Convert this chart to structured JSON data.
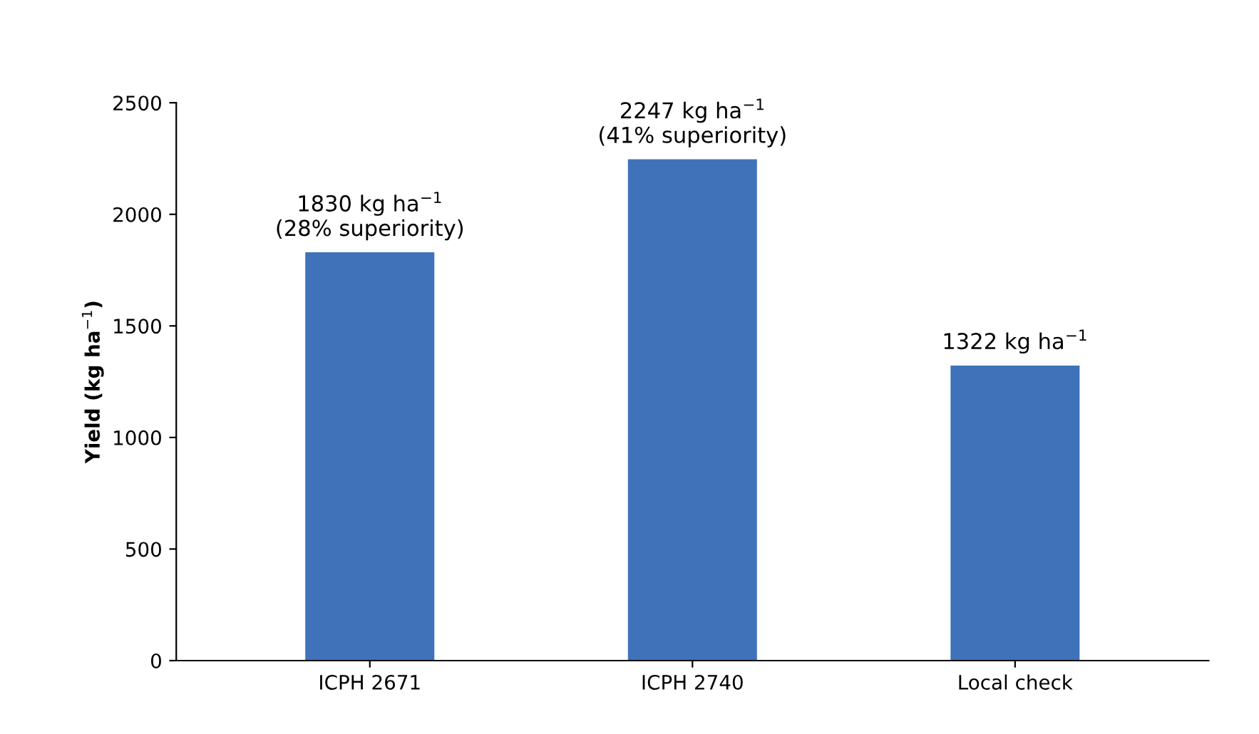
{
  "chart_data": {
    "type": "bar",
    "ylabel": "Yield (kg ha$^{−1}$)",
    "categories": [
      "ICPH 2671",
      "ICPH 2740",
      "Local check"
    ],
    "values": [
      1830,
      2247,
      1322
    ],
    "value_labels": [
      "1830 kg ha$^{−1}$\n(28% superiority)",
      "2247 kg ha$^{−1}$\n(41% superiority)",
      "1322 kg ha$^{−1}$"
    ],
    "color": "#3f72b9",
    "ylim": [
      0,
      2500
    ],
    "yticks": [
      0,
      500,
      1000,
      1500,
      2000,
      2500
    ],
    "grid": false,
    "legend": false
  }
}
